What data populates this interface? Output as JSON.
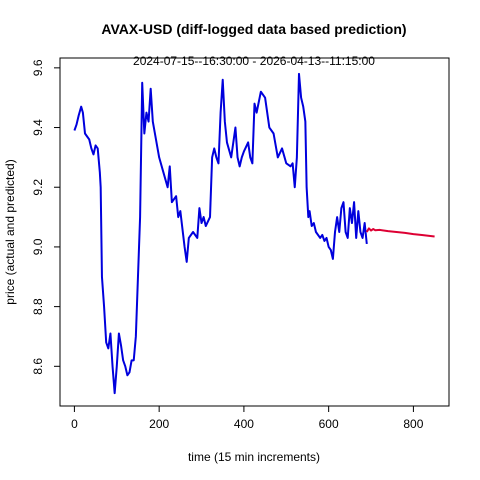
{
  "chart_data": {
    "type": "line",
    "title": "AVAX-USD (diff-logged data based prediction)",
    "subtitle": "2024-07-15--16:30:00  -  2026-04-13--11:15:00",
    "x_label": "time (15 min increments)",
    "y_label": "price (actual and predicted)",
    "xlim": [
      -34,
      884
    ],
    "ylim": [
      8.467,
      9.633
    ],
    "xticks": [
      0,
      200,
      400,
      600,
      800
    ],
    "yticks": [
      8.6,
      8.8,
      {
        "value": 9,
        "label": "9.0"
      },
      9.2,
      9.4,
      9.6
    ],
    "series": [
      {
        "color": "#0000dd",
        "x": [
          0,
          5,
          10,
          16,
          20,
          25,
          30,
          35,
          40,
          45,
          50,
          55,
          60,
          62,
          65,
          70,
          75,
          80,
          85,
          90,
          95,
          100,
          105,
          110,
          115,
          120,
          125,
          130,
          135,
          140,
          145,
          150,
          155,
          160,
          165,
          170,
          175,
          180,
          185,
          190,
          200,
          210,
          220,
          225,
          230,
          240,
          245,
          250,
          260,
          265,
          270,
          280,
          290,
          295,
          300,
          305,
          310,
          320,
          325,
          330,
          335,
          340,
          345,
          350,
          355,
          360,
          370,
          380,
          385,
          390,
          395,
          400,
          410,
          415,
          420,
          425,
          430,
          440,
          450,
          460,
          470,
          480,
          490,
          500,
          510,
          515,
          520,
          525,
          530,
          535,
          540,
          545,
          548,
          552,
          555,
          560,
          565,
          570,
          580,
          585,
          590,
          595,
          600,
          605,
          610,
          615,
          620,
          625,
          630,
          635,
          640,
          645,
          650,
          655,
          660,
          665,
          670,
          675,
          680,
          685,
          690
        ],
        "values": [
          9.39,
          9.41,
          9.44,
          9.47,
          9.45,
          9.38,
          9.37,
          9.36,
          9.33,
          9.31,
          9.34,
          9.33,
          9.25,
          9.2,
          8.9,
          8.8,
          8.68,
          8.66,
          8.71,
          8.6,
          8.51,
          8.6,
          8.71,
          8.67,
          8.62,
          8.6,
          8.57,
          8.58,
          8.62,
          8.62,
          8.7,
          8.9,
          9.1,
          9.55,
          9.38,
          9.45,
          9.42,
          9.53,
          9.42,
          9.38,
          9.3,
          9.25,
          9.2,
          9.27,
          9.15,
          9.17,
          9.1,
          9.12,
          9.0,
          8.95,
          9.03,
          9.05,
          9.03,
          9.13,
          9.08,
          9.1,
          9.07,
          9.1,
          9.3,
          9.33,
          9.3,
          9.28,
          9.45,
          9.56,
          9.42,
          9.35,
          9.3,
          9.4,
          9.3,
          9.27,
          9.3,
          9.32,
          9.35,
          9.3,
          9.28,
          9.48,
          9.45,
          9.52,
          9.5,
          9.4,
          9.38,
          9.3,
          9.33,
          9.28,
          9.27,
          9.28,
          9.2,
          9.3,
          9.58,
          9.5,
          9.47,
          9.42,
          9.2,
          9.1,
          9.12,
          9.07,
          9.08,
          9.05,
          9.03,
          9.04,
          9.02,
          9.03,
          9.0,
          8.99,
          8.96,
          9.05,
          9.1,
          9.05,
          9.13,
          9.15,
          9.05,
          9.03,
          9.13,
          9.08,
          9.15,
          9.03,
          9.12,
          9.05,
          9.03,
          9.08,
          9.01
        ]
      },
      {
        "color": "#dd0033",
        "x": [
          690,
          695,
          700,
          705,
          710,
          720,
          740,
          760,
          780,
          800,
          820,
          850
        ],
        "values": [
          9.05,
          9.062,
          9.055,
          9.06,
          9.056,
          9.057,
          9.053,
          9.05,
          9.047,
          9.043,
          9.04,
          9.035
        ]
      }
    ]
  }
}
